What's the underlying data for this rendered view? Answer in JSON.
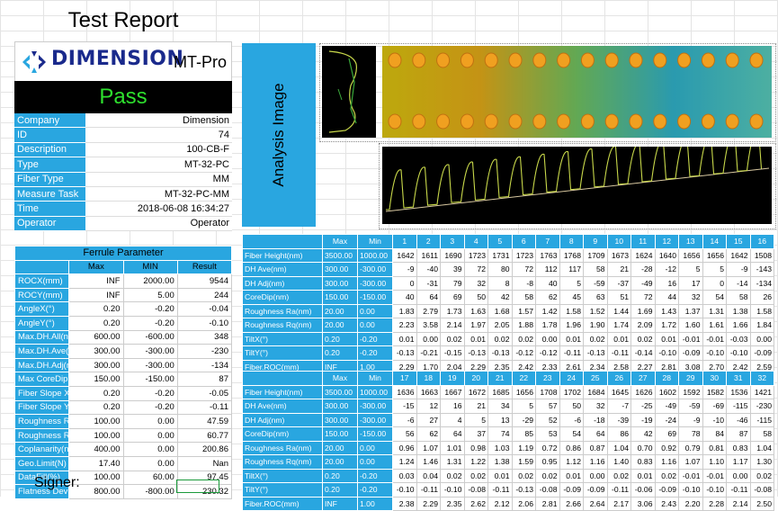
{
  "report": {
    "title": "Test Report",
    "brand": "DIMENSION",
    "model": "MT-Pro",
    "result": "Pass"
  },
  "info": [
    {
      "label": "Company",
      "value": "Dimension"
    },
    {
      "label": "ID",
      "value": "74"
    },
    {
      "label": "Description",
      "value": "100-CB-F"
    },
    {
      "label": "Type",
      "value": "MT-32-PC"
    },
    {
      "label": "Fiber Type",
      "value": "MM"
    },
    {
      "label": "Measure Task",
      "value": "MT-32-PC-MM"
    },
    {
      "label": "Time",
      "value": "2018-06-08 16:34:27"
    },
    {
      "label": "Operator",
      "value": "Operator"
    }
  ],
  "ferrule": {
    "title": "Ferrule Parameter",
    "headers": [
      "",
      "Max",
      "MIN",
      "Result"
    ],
    "rows": [
      [
        "ROCX(mm)",
        "INF",
        "2000.00",
        "9544"
      ],
      [
        "ROCY(mm)",
        "INF",
        "5.00",
        "244"
      ],
      [
        "AngleX(°)",
        "0.20",
        "-0.20",
        "-0.04"
      ],
      [
        "AngleY(°)",
        "0.20",
        "-0.20",
        "-0.10"
      ],
      [
        "Max.DH.All(nm)",
        "600.00",
        "-600.00",
        "348"
      ],
      [
        "Max.DH.Ave(nm)",
        "300.00",
        "-300.00",
        "-230"
      ],
      [
        "Max.DH.Adj(nm)",
        "300.00",
        "-300.00",
        "-134"
      ],
      [
        "Max CoreDip(nm)",
        "150.00",
        "-150.00",
        "87"
      ],
      [
        "Fiber Slope X(°)",
        "0.20",
        "-0.20",
        "-0.05"
      ],
      [
        "Fiber Slope Y(°)",
        "0.20",
        "-0.20",
        "-0.11"
      ],
      [
        "Roughness Ra(nm)",
        "100.00",
        "0.00",
        "47.59"
      ],
      [
        "Roughness Rq(nm)",
        "100.00",
        "0.00",
        "60.77"
      ],
      [
        "Coplanarity(nm)",
        "400.00",
        "0.00",
        "200.86"
      ],
      [
        "Geo.Limit(N)",
        "17.40",
        "0.00",
        "Nan"
      ],
      [
        "DataFill(%)",
        "100.00",
        "60.00",
        "97.45"
      ],
      [
        "Flatness Deviation(nm)",
        "800.00",
        "-800.00",
        "230.32"
      ]
    ]
  },
  "signer": "Signer:",
  "analysis": {
    "label": "Analysis Image"
  },
  "fiber_table_1": {
    "headers": [
      "",
      "Max",
      "Min",
      "1",
      "2",
      "3",
      "4",
      "5",
      "6",
      "7",
      "8",
      "9",
      "10",
      "11",
      "12",
      "13",
      "14",
      "15",
      "16"
    ],
    "rows": [
      [
        "Fiber Height(nm)",
        "3500.00",
        "1000.00",
        "1642",
        "1611",
        "1690",
        "1723",
        "1731",
        "1723",
        "1763",
        "1768",
        "1709",
        "1673",
        "1624",
        "1640",
        "1656",
        "1656",
        "1642",
        "1508"
      ],
      [
        "DH Ave(nm)",
        "300.00",
        "-300.00",
        "-9",
        "-40",
        "39",
        "72",
        "80",
        "72",
        "112",
        "117",
        "58",
        "21",
        "-28",
        "-12",
        "5",
        "5",
        "-9",
        "-143"
      ],
      [
        "DH Adj(nm)",
        "300.00",
        "-300.00",
        "0",
        "-31",
        "79",
        "32",
        "8",
        "-8",
        "40",
        "5",
        "-59",
        "-37",
        "-49",
        "16",
        "17",
        "0",
        "-14",
        "-134"
      ],
      [
        "CoreDip(nm)",
        "150.00",
        "-150.00",
        "40",
        "64",
        "69",
        "50",
        "42",
        "58",
        "62",
        "45",
        "63",
        "51",
        "72",
        "44",
        "32",
        "54",
        "58",
        "26"
      ],
      [
        "Roughness Ra(nm)",
        "20.00",
        "0.00",
        "1.83",
        "2.79",
        "1.73",
        "1.63",
        "1.68",
        "1.57",
        "1.42",
        "1.58",
        "1.52",
        "1.44",
        "1.69",
        "1.43",
        "1.37",
        "1.31",
        "1.38",
        "1.58"
      ],
      [
        "Roughness Rq(nm)",
        "20.00",
        "0.00",
        "2.23",
        "3.58",
        "2.14",
        "1.97",
        "2.05",
        "1.88",
        "1.78",
        "1.96",
        "1.90",
        "1.74",
        "2.09",
        "1.72",
        "1.60",
        "1.61",
        "1.66",
        "1.84"
      ],
      [
        "TiltX(°)",
        "0.20",
        "-0.20",
        "0.01",
        "0.00",
        "0.02",
        "0.01",
        "0.02",
        "0.02",
        "0.00",
        "0.01",
        "0.02",
        "0.01",
        "0.02",
        "0.01",
        "-0.01",
        "-0.01",
        "-0.03",
        "0.00"
      ],
      [
        "TiltY(°)",
        "0.20",
        "-0.20",
        "-0.13",
        "-0.21",
        "-0.15",
        "-0.13",
        "-0.13",
        "-0.12",
        "-0.12",
        "-0.11",
        "-0.13",
        "-0.11",
        "-0.14",
        "-0.10",
        "-0.09",
        "-0.10",
        "-0.10",
        "-0.09"
      ],
      [
        "Fiber.ROC(mm)",
        "INF",
        "1.00",
        "2.29",
        "1.70",
        "2.04",
        "2.29",
        "2.35",
        "2.42",
        "2.33",
        "2.61",
        "2.34",
        "2.58",
        "2.27",
        "2.81",
        "3.08",
        "2.70",
        "2.42",
        "2.59"
      ]
    ]
  },
  "fiber_table_2": {
    "headers": [
      "",
      "Max",
      "Min",
      "17",
      "18",
      "19",
      "20",
      "21",
      "22",
      "23",
      "24",
      "25",
      "26",
      "27",
      "28",
      "29",
      "30",
      "31",
      "32"
    ],
    "rows": [
      [
        "Fiber Height(nm)",
        "3500.00",
        "1000.00",
        "1636",
        "1663",
        "1667",
        "1672",
        "1685",
        "1656",
        "1708",
        "1702",
        "1684",
        "1645",
        "1626",
        "1602",
        "1592",
        "1582",
        "1536",
        "1421"
      ],
      [
        "DH Ave(nm)",
        "300.00",
        "-300.00",
        "-15",
        "12",
        "16",
        "21",
        "34",
        "5",
        "57",
        "50",
        "32",
        "-7",
        "-25",
        "-49",
        "-59",
        "-69",
        "-115",
        "-230"
      ],
      [
        "DH Adj(nm)",
        "300.00",
        "-300.00",
        "-6",
        "27",
        "4",
        "5",
        "13",
        "-29",
        "52",
        "-6",
        "-18",
        "-39",
        "-19",
        "-24",
        "-9",
        "-10",
        "-46",
        "-115"
      ],
      [
        "CoreDip(nm)",
        "150.00",
        "-150.00",
        "56",
        "62",
        "64",
        "37",
        "74",
        "85",
        "53",
        "54",
        "64",
        "86",
        "42",
        "69",
        "78",
        "84",
        "87",
        "58"
      ],
      [
        "Roughness Ra(nm)",
        "20.00",
        "0.00",
        "0.96",
        "1.07",
        "1.01",
        "0.98",
        "1.03",
        "1.19",
        "0.72",
        "0.86",
        "0.87",
        "1.04",
        "0.70",
        "0.92",
        "0.79",
        "0.81",
        "0.83",
        "1.04"
      ],
      [
        "Roughness Rq(nm)",
        "20.00",
        "0.00",
        "1.24",
        "1.46",
        "1.31",
        "1.22",
        "1.38",
        "1.59",
        "0.95",
        "1.12",
        "1.16",
        "1.40",
        "0.83",
        "1.16",
        "1.07",
        "1.10",
        "1.17",
        "1.30"
      ],
      [
        "TiltX(°)",
        "0.20",
        "-0.20",
        "0.03",
        "0.04",
        "0.02",
        "0.02",
        "0.01",
        "0.02",
        "0.02",
        "0.01",
        "0.00",
        "0.02",
        "0.01",
        "0.02",
        "-0.01",
        "-0.01",
        "0.00",
        "0.02"
      ],
      [
        "TiltY(°)",
        "0.20",
        "-0.20",
        "-0.10",
        "-0.11",
        "-0.10",
        "-0.08",
        "-0.11",
        "-0.13",
        "-0.08",
        "-0.09",
        "-0.09",
        "-0.11",
        "-0.06",
        "-0.09",
        "-0.10",
        "-0.10",
        "-0.11",
        "-0.08"
      ],
      [
        "Fiber.ROC(mm)",
        "INF",
        "1.00",
        "2.38",
        "2.29",
        "2.35",
        "2.62",
        "2.12",
        "2.06",
        "2.81",
        "2.66",
        "2.64",
        "2.17",
        "3.06",
        "2.43",
        "2.20",
        "2.28",
        "2.14",
        "2.50"
      ]
    ]
  },
  "colors": {
    "accent": "#29a6e0",
    "pass": "#2ee02e",
    "brand": "#1a2a8c"
  }
}
